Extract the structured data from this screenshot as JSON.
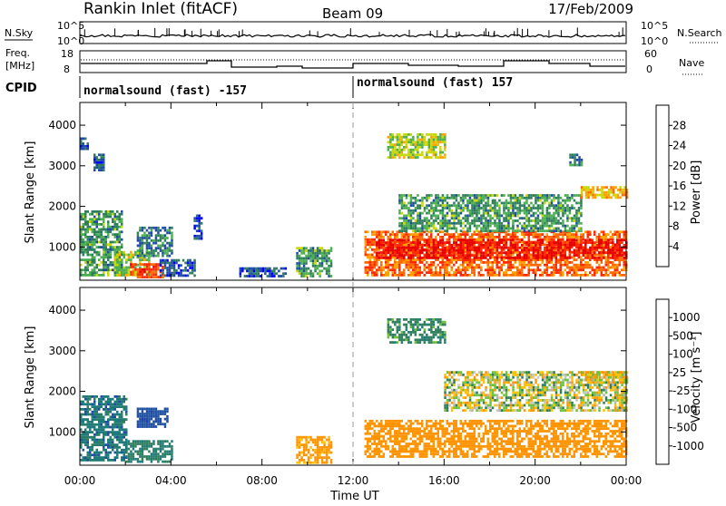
{
  "header": {
    "title": "Rankin Inlet (fitACF)",
    "beam": "Beam 09",
    "date": "17/Feb/2009"
  },
  "noise_panel": {
    "left_label": "N.Sky",
    "right_label": "N.Search",
    "left_ticks": [
      "10^5",
      "10^0"
    ],
    "right_ticks": [
      "10^5",
      "10^0"
    ]
  },
  "freq_panel": {
    "left_label_1": "Freq.",
    "left_label_2": "[MHz]",
    "right_label": "Nave",
    "left_ticks": [
      "18",
      "8"
    ],
    "right_ticks": [
      "60",
      "0"
    ]
  },
  "cpid": {
    "label": "CPID",
    "programs": [
      {
        "text": "normalsound (fast) -157",
        "start_hour": 0,
        "end_hour": 12
      },
      {
        "text": "normalsound (fast) 157",
        "start_hour": 12,
        "end_hour": 24
      }
    ]
  },
  "colors": {
    "power": [
      "#0000ff",
      "#1f4aa8",
      "#2e7d5b",
      "#4caf50",
      "#c8d800",
      "#ffa000",
      "#ff6a00",
      "#ff2a00",
      "#e60000"
    ],
    "velocity": [
      "#e60000",
      "#ff6a00",
      "#ff9400",
      "#ffc000",
      "#c8c8c0",
      "#b4b4a8",
      "#6cc13a",
      "#2e7d5b",
      "#1f7a7a",
      "#1e4fa0",
      "#1f3fb0"
    ]
  },
  "chart_data": [
    {
      "type": "heatmap",
      "name": "power",
      "xlabel": "",
      "ylabel": "Slant Range [km]",
      "xlim": [
        0,
        24
      ],
      "ylim": [
        180,
        4560
      ],
      "yticks": [
        "1000",
        "2000",
        "3000",
        "4000"
      ],
      "colorbar": {
        "label": "Power [dB]",
        "ticks": [
          "4",
          "8",
          "12",
          "16",
          "20",
          "24",
          "28"
        ],
        "range": [
          0,
          30
        ]
      },
      "regions": [
        {
          "t0": 0.0,
          "t1": 1.8,
          "r0": 300,
          "r1": 1900,
          "v": 10
        },
        {
          "t0": 1.5,
          "t1": 3.0,
          "r0": 300,
          "r1": 900,
          "v": 14
        },
        {
          "t0": 2.2,
          "t1": 3.6,
          "r0": 250,
          "r1": 600,
          "v": 24
        },
        {
          "t0": 2.5,
          "t1": 4.0,
          "r0": 800,
          "r1": 1500,
          "v": 8
        },
        {
          "t0": 3.5,
          "t1": 5.0,
          "r0": 300,
          "r1": 700,
          "v": 6
        },
        {
          "t0": 7.0,
          "t1": 9.0,
          "r0": 250,
          "r1": 500,
          "v": 6
        },
        {
          "t0": 9.5,
          "t1": 11.0,
          "r0": 250,
          "r1": 1000,
          "v": 10
        },
        {
          "t0": 12.5,
          "t1": 24.0,
          "r0": 300,
          "r1": 1400,
          "v": 22
        },
        {
          "t0": 13.0,
          "t1": 24.0,
          "r0": 750,
          "r1": 1200,
          "v": 28
        },
        {
          "t0": 14.0,
          "t1": 22.0,
          "r0": 1400,
          "r1": 2300,
          "v": 10
        },
        {
          "t0": 13.5,
          "t1": 16.0,
          "r0": 3200,
          "r1": 3800,
          "v": 14
        },
        {
          "t0": 22.0,
          "t1": 24.0,
          "r0": 2200,
          "r1": 2500,
          "v": 18
        },
        {
          "t0": 0.6,
          "t1": 1.0,
          "r0": 2900,
          "r1": 3300,
          "v": 6
        },
        {
          "t0": 5.0,
          "t1": 5.3,
          "r0": 1200,
          "r1": 1800,
          "v": 4
        },
        {
          "t0": 0.0,
          "t1": 0.3,
          "r0": 3400,
          "r1": 3700,
          "v": 6
        },
        {
          "t0": 21.5,
          "t1": 22.0,
          "r0": 3000,
          "r1": 3300,
          "v": 8
        }
      ]
    },
    {
      "type": "heatmap",
      "name": "velocity",
      "xlabel": "Time UT",
      "ylabel": "Slant Range [km]",
      "xlim": [
        0,
        24
      ],
      "ylim": [
        180,
        4560
      ],
      "xticks": [
        "00:00",
        "04:00",
        "08:00",
        "12:00",
        "16:00",
        "20:00",
        "00:00"
      ],
      "yticks": [
        "1000",
        "2000",
        "3000",
        "4000"
      ],
      "colorbar": {
        "label": "Velocity [m s⁻¹]",
        "ticks": [
          "1000",
          "500",
          "100",
          "25",
          "-25",
          "-100",
          "-500",
          "-1000"
        ]
      },
      "regions": [
        {
          "t0": 0.0,
          "t1": 2.0,
          "r0": 300,
          "r1": 1900,
          "v": 400
        },
        {
          "t0": 2.0,
          "t1": 4.0,
          "r0": 250,
          "r1": 800,
          "v": 300
        },
        {
          "t0": 2.5,
          "t1": 3.8,
          "r0": 1100,
          "r1": 1600,
          "v": 700
        },
        {
          "t0": 9.5,
          "t1": 11.0,
          "r0": 250,
          "r1": 900,
          "v": -200
        },
        {
          "t0": 12.5,
          "t1": 24.0,
          "r0": 400,
          "r1": 1300,
          "v": -300
        },
        {
          "t0": 16.0,
          "t1": 24.0,
          "r0": 1500,
          "r1": 2500,
          "v": 0
        },
        {
          "t0": 13.5,
          "t1": 16.0,
          "r0": 3200,
          "r1": 3800,
          "v": 200
        },
        {
          "t0": 22.0,
          "t1": 24.0,
          "r0": 2200,
          "r1": 2500,
          "v": -50
        }
      ]
    }
  ]
}
